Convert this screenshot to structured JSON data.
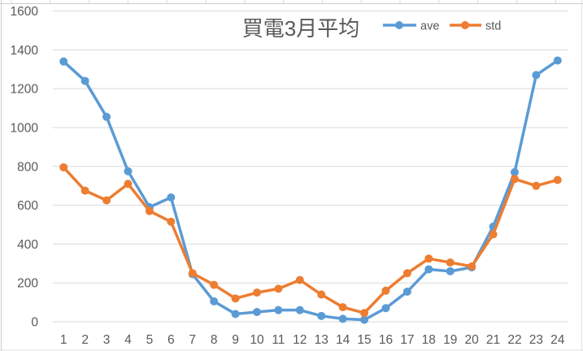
{
  "window": {
    "bg": "#ffffff",
    "frame_border_color": "#cccccc",
    "sheet_tick_color": "#d9d9d9"
  },
  "chart_data": {
    "type": "line",
    "title": "買電3月平均",
    "categories": [
      "1",
      "2",
      "3",
      "4",
      "5",
      "6",
      "7",
      "8",
      "9",
      "10",
      "11",
      "12",
      "13",
      "14",
      "15",
      "16",
      "17",
      "18",
      "19",
      "20",
      "21",
      "22",
      "23",
      "24"
    ],
    "series": [
      {
        "name": "ave",
        "color": "#5B9BD5",
        "values": [
          1340,
          1240,
          1055,
          775,
          590,
          640,
          245,
          105,
          40,
          50,
          60,
          60,
          30,
          15,
          10,
          70,
          155,
          270,
          260,
          280,
          490,
          770,
          1270,
          1345
        ]
      },
      {
        "name": "std",
        "color": "#ED7D31",
        "values": [
          795,
          675,
          625,
          710,
          570,
          515,
          250,
          190,
          120,
          150,
          170,
          215,
          140,
          75,
          45,
          160,
          250,
          325,
          305,
          285,
          450,
          735,
          700,
          730
        ]
      }
    ],
    "xlabel": "",
    "ylabel": "",
    "ylim": [
      0,
      1600
    ],
    "y_ticks": [
      "0",
      "200",
      "400",
      "600",
      "800",
      "1000",
      "1200",
      "1400",
      "1600"
    ],
    "grid": "horizontal-only",
    "grid_color": "#d9d9d9",
    "legend_position": "top-right-inline-with-title",
    "text_color": "#595959",
    "marker": "circle",
    "line_width": 3.5,
    "marker_radius": 5
  }
}
